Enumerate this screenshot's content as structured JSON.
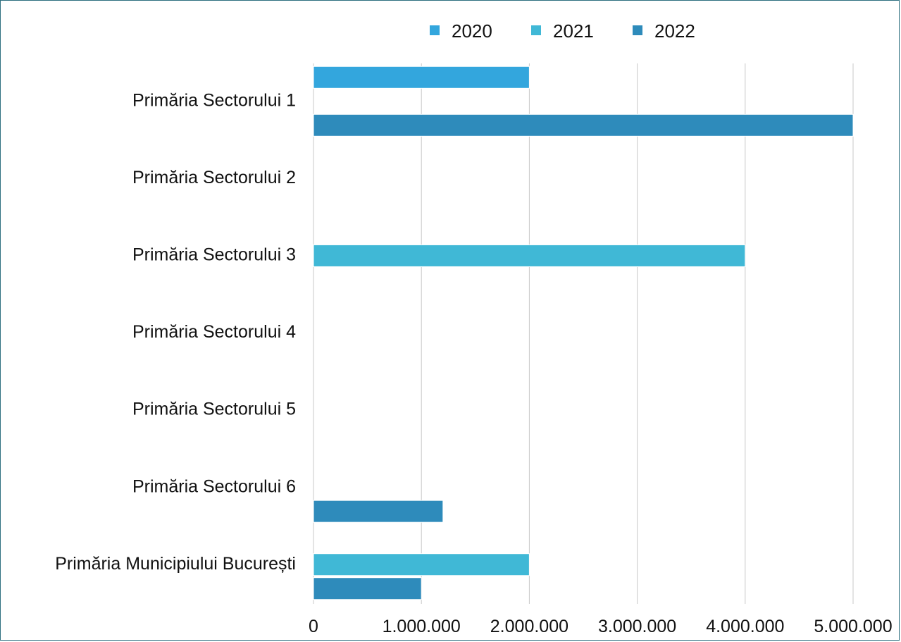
{
  "chart_data": {
    "type": "bar",
    "orientation": "horizontal",
    "categories": [
      "Primăria Sectorului 1",
      "Primăria Sectorului 2",
      "Primăria Sectorului 3",
      "Primăria Sectorului 4",
      "Primăria Sectorului 5",
      "Primăria Sectorului 6",
      "Primăria Municipiului București"
    ],
    "series": [
      {
        "name": "2020",
        "color": "#33a6dd",
        "values": [
          2000000,
          0,
          0,
          0,
          0,
          0,
          0
        ]
      },
      {
        "name": "2021",
        "color": "#40b8d6",
        "values": [
          0,
          0,
          4000000,
          0,
          0,
          0,
          2000000
        ]
      },
      {
        "name": "2022",
        "color": "#2e8bbb",
        "values": [
          5000000,
          0,
          0,
          0,
          0,
          1200000,
          1000000
        ]
      }
    ],
    "xlim": [
      0,
      5000000
    ],
    "x_ticks": [
      0,
      1000000,
      2000000,
      3000000,
      4000000,
      5000000
    ],
    "x_tick_labels": [
      "0",
      "1.000.000",
      "2.000.000",
      "3.000.000",
      "4.000.000",
      "5.000.000"
    ],
    "grid": "vertical",
    "legend_position": "top"
  }
}
